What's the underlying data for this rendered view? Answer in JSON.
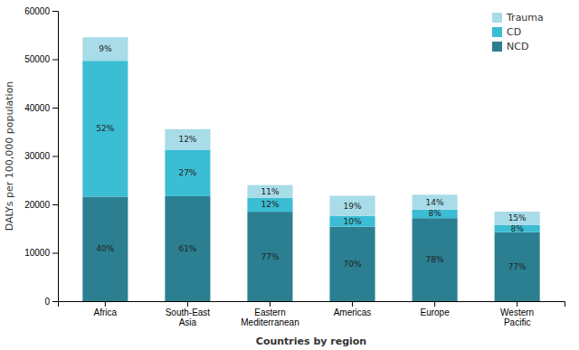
{
  "chart_data": {
    "type": "bar",
    "stacked": true,
    "categories": [
      "Africa",
      "South-East\nAsia",
      "Eastern\nMediterranean",
      "Americas",
      "Europe",
      "Western\nPacific"
    ],
    "series": [
      {
        "name": "NCD",
        "color": "#2b7f91",
        "values": [
          21600,
          21700,
          18480,
          15400,
          17160,
          14245
        ],
        "shares": [
          40,
          61,
          77,
          70,
          78,
          77
        ],
        "share_labels": [
          "40%",
          "61%",
          "77%",
          "70%",
          "78%",
          "77%"
        ]
      },
      {
        "name": "CD",
        "color": "#3bbdd4",
        "values": [
          28080,
          9585,
          2880,
          2200,
          1760,
          1480
        ],
        "shares": [
          52,
          27,
          12,
          10,
          8,
          8
        ],
        "share_labels": [
          "52%",
          "27%",
          "12%",
          "10%",
          "8%",
          "8%"
        ]
      },
      {
        "name": "Trauma",
        "color": "#a8dce8",
        "values": [
          4860,
          4265,
          2640,
          4180,
          3080,
          2775
        ],
        "shares": [
          9,
          12,
          11,
          19,
          14,
          15
        ],
        "share_labels": [
          "9%",
          "12%",
          "11%",
          "19%",
          "14%",
          "15%"
        ]
      }
    ],
    "ylabel": "DALYs per 100,000 population",
    "xlabel": "Countries by region",
    "ylim": [
      0,
      60000
    ],
    "yticks": [
      0,
      10000,
      20000,
      30000,
      40000,
      50000,
      60000
    ],
    "legend": "upper right",
    "grid": false
  }
}
